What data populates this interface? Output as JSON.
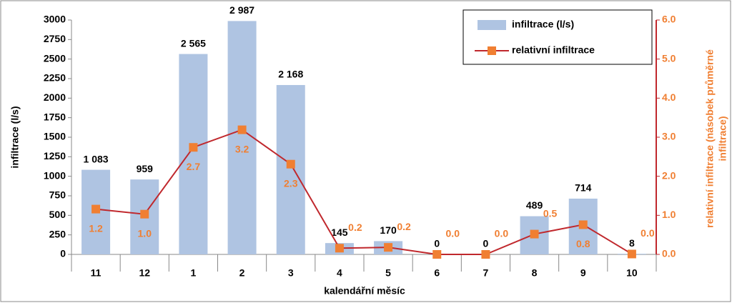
{
  "chart_data": {
    "type": "bar-line",
    "categories": [
      "11",
      "12",
      "1",
      "2",
      "3",
      "4",
      "5",
      "6",
      "7",
      "8",
      "9",
      "10"
    ],
    "xlabel": "kalendářní měsíc",
    "ylabel": "infiltrace (l/s)",
    "y2label": [
      "relativní infiltrace (násobek průměrné",
      "infiltrace)"
    ],
    "series": [
      {
        "name": "infiltrace (l/s)",
        "type": "bar",
        "color": "#afc4e2",
        "values": [
          1083,
          959,
          2565,
          2987,
          2168,
          145,
          170,
          0,
          0,
          489,
          714,
          8
        ],
        "value_labels": [
          "1 083",
          "959",
          "2 565",
          "2 987",
          "2 168",
          "145",
          "170",
          "0",
          "0",
          "489",
          "714",
          "8"
        ]
      },
      {
        "name": "relativní infiltrace",
        "type": "line",
        "axis": "y2",
        "color": "#c0282d",
        "marker_color": "#f07f32",
        "values": [
          1.16,
          1.03,
          2.74,
          3.19,
          2.31,
          0.16,
          0.18,
          0,
          0,
          0.52,
          0.76,
          0.01
        ],
        "value_labels": [
          "1.2",
          "1.0",
          "2.7",
          "3.2",
          "2.3",
          "0.2",
          "0.2",
          "0.0",
          "0.0",
          "0.5",
          "0.8",
          "0.0"
        ]
      }
    ],
    "ylim": [
      0,
      3000
    ],
    "yticks": [
      0,
      250,
      500,
      750,
      1000,
      1250,
      1500,
      1750,
      2000,
      2250,
      2500,
      2750,
      3000
    ],
    "y2lim": [
      0,
      6
    ],
    "y2ticks": [
      {
        "value": 0,
        "label": "0.0"
      },
      {
        "value": 1,
        "label": "1.0"
      },
      {
        "value": 2,
        "label": "2.0"
      },
      {
        "value": 3,
        "label": "3.0"
      },
      {
        "value": 4,
        "label": "4.0"
      },
      {
        "value": 5,
        "label": "5.0"
      },
      {
        "value": 6,
        "label": "6.0"
      }
    ],
    "legend": "top-right",
    "grid": false
  }
}
